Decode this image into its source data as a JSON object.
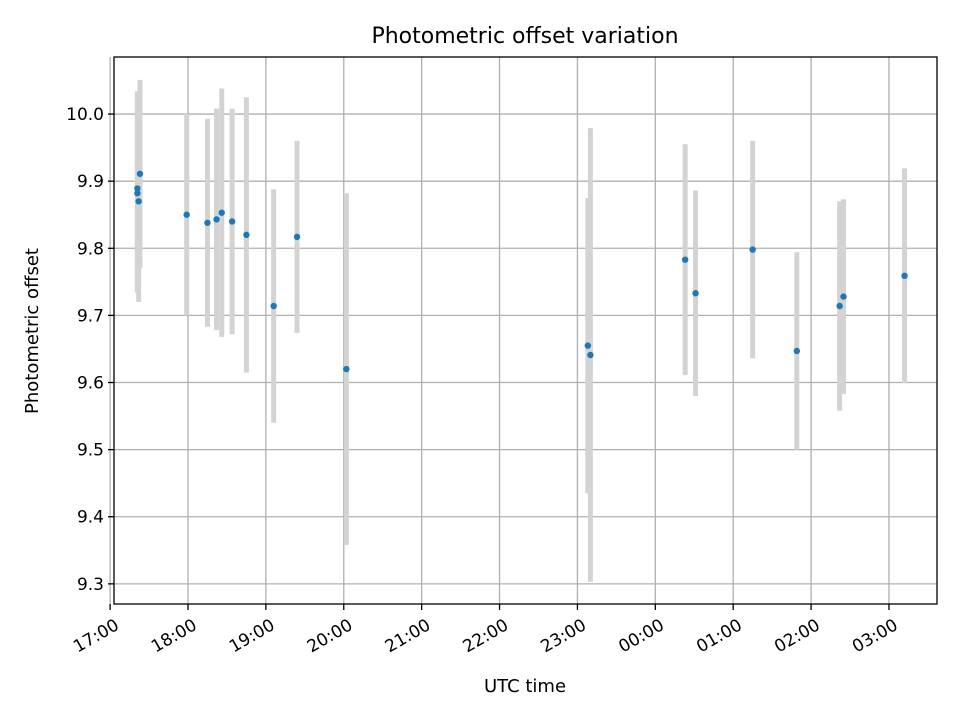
{
  "chart_data": {
    "type": "scatter",
    "title": "Photometric offset variation",
    "xlabel": "UTC time",
    "ylabel": "Photometric offset",
    "xlim": [
      "17:03",
      "03:37"
    ],
    "ylim": [
      9.27,
      10.085
    ],
    "grid": true,
    "colors": {
      "points": "#1f77b4",
      "errorbars": "#d3d3d3"
    },
    "x_ticks": [
      "17:00",
      "18:00",
      "19:00",
      "20:00",
      "21:00",
      "22:00",
      "23:00",
      "00:00",
      "01:00",
      "02:00",
      "03:00"
    ],
    "y_ticks": [
      "9.3",
      "9.4",
      "9.5",
      "9.6",
      "9.7",
      "9.8",
      "9.9",
      "10.0"
    ],
    "points": [
      {
        "x": "17:21",
        "y": 9.889,
        "err": 0.145
      },
      {
        "x": "17:21",
        "y": 9.882,
        "err": 0.148
      },
      {
        "x": "17:22",
        "y": 9.87,
        "err": 0.15
      },
      {
        "x": "17:23",
        "y": 9.911,
        "err": 0.14
      },
      {
        "x": "17:59",
        "y": 9.85,
        "err": 0.15
      },
      {
        "x": "18:15",
        "y": 9.838,
        "err": 0.155
      },
      {
        "x": "18:22",
        "y": 9.843,
        "err": 0.165
      },
      {
        "x": "18:26",
        "y": 9.853,
        "err": 0.185
      },
      {
        "x": "18:34",
        "y": 9.84,
        "err": 0.168
      },
      {
        "x": "18:45",
        "y": 9.82,
        "err": 0.205
      },
      {
        "x": "19:06",
        "y": 9.714,
        "err": 0.174
      },
      {
        "x": "19:24",
        "y": 9.817,
        "err": 0.143
      },
      {
        "x": "20:02",
        "y": 9.62,
        "err": 0.262
      },
      {
        "x": "23:08",
        "y": 9.655,
        "err": 0.22
      },
      {
        "x": "23:10",
        "y": 9.641,
        "err": 0.338
      },
      {
        "x": "00:23",
        "y": 9.783,
        "err": 0.172
      },
      {
        "x": "00:31",
        "y": 9.733,
        "err": 0.153
      },
      {
        "x": "01:15",
        "y": 9.798,
        "err": 0.162
      },
      {
        "x": "01:49",
        "y": 9.647,
        "err": 0.147
      },
      {
        "x": "02:22",
        "y": 9.714,
        "err": 0.156
      },
      {
        "x": "02:25",
        "y": 9.728,
        "err": 0.145
      },
      {
        "x": "03:12",
        "y": 9.759,
        "err": 0.16
      }
    ]
  }
}
